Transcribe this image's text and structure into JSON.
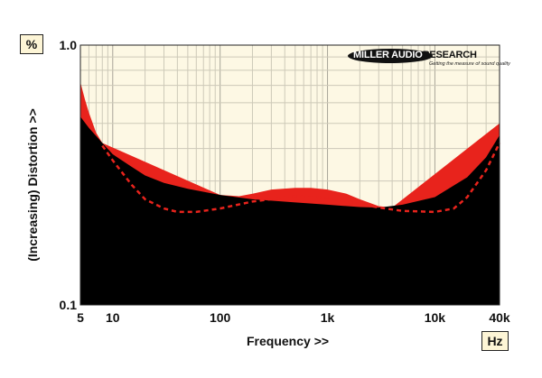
{
  "chart_data": {
    "type": "area",
    "title": "",
    "xlabel": "Frequency >>",
    "ylabel": "(Increasing) Distortion >>",
    "x_unit": "Hz",
    "y_unit": "%",
    "x_scale": "log",
    "y_scale": "log",
    "xlim": [
      5,
      40000
    ],
    "ylim": [
      0.1,
      1.0
    ],
    "x_ticks": [
      {
        "value": 5,
        "label": "5"
      },
      {
        "value": 10,
        "label": "10"
      },
      {
        "value": 100,
        "label": "100"
      },
      {
        "value": 1000,
        "label": "1k"
      },
      {
        "value": 10000,
        "label": "10k"
      },
      {
        "value": 40000,
        "label": "40k"
      }
    ],
    "y_ticks": [
      {
        "value": 0.1,
        "label": "0.1"
      },
      {
        "value": 1.0,
        "label": "1.0"
      }
    ],
    "grid": true,
    "series": [
      {
        "style": "filled-black",
        "color": "#000000",
        "x": [
          5,
          6,
          8,
          10,
          15,
          20,
          30,
          50,
          100,
          200,
          500,
          1000,
          2000,
          3000,
          5000,
          10000,
          20000,
          30000,
          40000
        ],
        "y": [
          0.53,
          0.48,
          0.42,
          0.38,
          0.34,
          0.315,
          0.295,
          0.28,
          0.265,
          0.255,
          0.248,
          0.243,
          0.238,
          0.237,
          0.243,
          0.26,
          0.31,
          0.37,
          0.45
        ]
      },
      {
        "style": "filled-red",
        "color": "#e8231c",
        "x": [
          5,
          5.5,
          6,
          7,
          8,
          100,
          150,
          200,
          300,
          500,
          700,
          1000,
          1500,
          2000,
          3000,
          4000,
          40000
        ],
        "y": [
          0.72,
          0.62,
          0.55,
          0.46,
          0.42,
          0.265,
          0.262,
          0.268,
          0.278,
          0.282,
          0.282,
          0.278,
          0.268,
          0.255,
          0.24,
          0.237,
          0.5
        ]
      },
      {
        "style": "dashed-red",
        "color": "#e8231c",
        "x": [
          8,
          10,
          15,
          20,
          30,
          40,
          60,
          100,
          200,
          500,
          1000,
          2000,
          3000,
          5000,
          10000,
          15000,
          20000,
          30000,
          40000
        ],
        "y": [
          0.41,
          0.36,
          0.29,
          0.255,
          0.235,
          0.228,
          0.228,
          0.235,
          0.25,
          0.262,
          0.258,
          0.245,
          0.237,
          0.23,
          0.228,
          0.235,
          0.26,
          0.33,
          0.42
        ]
      }
    ]
  },
  "logo": {
    "part1": "MILLER AUDIO",
    "part2": "RESEARCH",
    "tagline": "Getting the measure of sound quality"
  }
}
